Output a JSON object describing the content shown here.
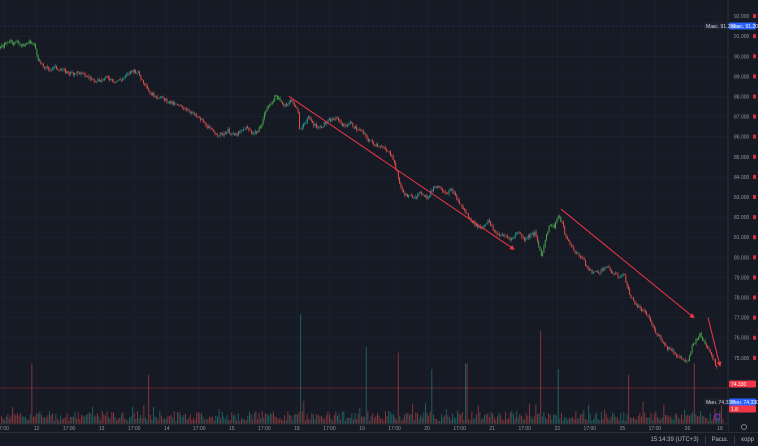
{
  "chart_data": {
    "type": "candlestick",
    "y_range": [
      73.5,
      92.5
    ],
    "y_ticks": [
      "92.000",
      "91.000",
      "90.000",
      "89.000",
      "88.000",
      "87.000",
      "86.000",
      "85.000",
      "84.000",
      "83.000",
      "82.000",
      "81.000",
      "80.000",
      "79.000",
      "78.000",
      "77.000",
      "76.000",
      "75.000"
    ],
    "x_tick_labels": [
      "7:00",
      "12",
      "17:00",
      "13",
      "17:00",
      "14",
      "17:00",
      "15",
      "17:00",
      "18",
      "17:00",
      "19",
      "17:00",
      "20",
      "17:00",
      "21",
      "17:00",
      "22",
      "17:00",
      "25",
      "17:00",
      "26",
      "18"
    ],
    "price_path": [
      [
        0,
        90.4
      ],
      [
        5,
        90.6
      ],
      [
        10,
        90.8
      ],
      [
        14,
        90.65
      ],
      [
        18,
        90.75
      ],
      [
        22,
        90.5
      ],
      [
        26,
        90.6
      ],
      [
        30,
        90.75
      ],
      [
        35,
        90.5
      ],
      [
        38,
        89.9
      ],
      [
        42,
        89.5
      ],
      [
        48,
        89.35
      ],
      [
        55,
        89.45
      ],
      [
        62,
        89.3
      ],
      [
        70,
        89.15
      ],
      [
        78,
        89.2
      ],
      [
        85,
        89.05
      ],
      [
        92,
        88.85
      ],
      [
        100,
        88.8
      ],
      [
        108,
        88.95
      ],
      [
        115,
        88.75
      ],
      [
        122,
        88.85
      ],
      [
        128,
        89.1
      ],
      [
        132,
        89.3
      ],
      [
        138,
        89.2
      ],
      [
        142,
        88.8
      ],
      [
        146,
        88.6
      ],
      [
        150,
        88.15
      ],
      [
        158,
        88.0
      ],
      [
        165,
        87.85
      ],
      [
        172,
        87.65
      ],
      [
        180,
        87.5
      ],
      [
        188,
        87.35
      ],
      [
        195,
        87.05
      ],
      [
        202,
        86.8
      ],
      [
        210,
        86.35
      ],
      [
        216,
        86.15
      ],
      [
        222,
        86.1
      ],
      [
        228,
        86.3
      ],
      [
        234,
        86.05
      ],
      [
        240,
        86.2
      ],
      [
        246,
        86.45
      ],
      [
        252,
        86.2
      ],
      [
        258,
        86.25
      ],
      [
        262,
        86.7
      ],
      [
        266,
        87.35
      ],
      [
        270,
        87.6
      ],
      [
        276,
        88.05
      ],
      [
        280,
        87.75
      ],
      [
        285,
        87.55
      ],
      [
        290,
        87.8
      ],
      [
        295,
        87.6
      ],
      [
        298,
        87.2
      ],
      [
        300,
        86.2
      ],
      [
        303,
        86.6
      ],
      [
        308,
        86.95
      ],
      [
        314,
        86.6
      ],
      [
        320,
        86.45
      ],
      [
        326,
        86.7
      ],
      [
        332,
        86.85
      ],
      [
        338,
        86.9
      ],
      [
        344,
        86.5
      ],
      [
        350,
        86.7
      ],
      [
        356,
        86.4
      ],
      [
        362,
        86.25
      ],
      [
        368,
        85.85
      ],
      [
        374,
        85.65
      ],
      [
        380,
        85.55
      ],
      [
        386,
        85.3
      ],
      [
        392,
        85.1
      ],
      [
        398,
        84.0
      ],
      [
        402,
        83.3
      ],
      [
        408,
        83.0
      ],
      [
        415,
        83.05
      ],
      [
        422,
        83.2
      ],
      [
        428,
        82.95
      ],
      [
        434,
        83.55
      ],
      [
        440,
        83.5
      ],
      [
        446,
        83.2
      ],
      [
        452,
        83.35
      ],
      [
        458,
        82.8
      ],
      [
        464,
        82.35
      ],
      [
        470,
        81.9
      ],
      [
        476,
        81.6
      ],
      [
        482,
        81.45
      ],
      [
        488,
        81.85
      ],
      [
        494,
        81.3
      ],
      [
        500,
        81.1
      ],
      [
        506,
        81.05
      ],
      [
        512,
        80.9
      ],
      [
        518,
        81.3
      ],
      [
        524,
        80.9
      ],
      [
        530,
        81.1
      ],
      [
        535,
        81.2
      ],
      [
        539,
        80.5
      ],
      [
        542,
        80.05
      ],
      [
        546,
        81.1
      ],
      [
        550,
        81.65
      ],
      [
        554,
        81.5
      ],
      [
        558,
        82.05
      ],
      [
        562,
        81.75
      ],
      [
        566,
        80.95
      ],
      [
        570,
        80.7
      ],
      [
        576,
        80.2
      ],
      [
        582,
        80.0
      ],
      [
        588,
        79.4
      ],
      [
        594,
        79.25
      ],
      [
        600,
        79.3
      ],
      [
        606,
        79.55
      ],
      [
        612,
        79.25
      ],
      [
        618,
        79.05
      ],
      [
        624,
        79.15
      ],
      [
        630,
        78.1
      ],
      [
        636,
        77.65
      ],
      [
        642,
        77.35
      ],
      [
        648,
        77.1
      ],
      [
        654,
        76.4
      ],
      [
        660,
        76.05
      ],
      [
        666,
        75.55
      ],
      [
        672,
        75.4
      ],
      [
        678,
        75.05
      ],
      [
        684,
        74.9
      ],
      [
        688,
        74.75
      ],
      [
        692,
        75.55
      ],
      [
        696,
        75.9
      ],
      [
        700,
        76.15
      ],
      [
        704,
        75.8
      ],
      [
        708,
        75.55
      ],
      [
        712,
        75.1
      ],
      [
        716,
        74.6
      ]
    ],
    "green_segments": [
      [
        0,
        40
      ],
      [
        258,
        282
      ],
      [
        538,
        562
      ],
      [
        686,
        706
      ]
    ],
    "trend_lines": [
      {
        "from": [
          289,
          88.0
        ],
        "to": [
          514,
          80.4
        ]
      },
      {
        "from": [
          561,
          82.4
        ],
        "to": [
          694,
          77.0
        ]
      },
      {
        "from": [
          708,
          77.0
        ],
        "to": [
          720,
          74.6
        ]
      }
    ],
    "price_tags": [
      {
        "label": "Макс.",
        "value": "91.200",
        "color": "#2962ff"
      },
      {
        "label": "",
        "value": "74.330",
        "color": "#f23645"
      },
      {
        "label": "Мин.",
        "value": "74.330",
        "color": "#2962ff"
      },
      {
        "label": "",
        "value": "1.8",
        "color": "#f23645"
      }
    ],
    "volume_spikes": [
      [
        32,
        0.55
      ],
      [
        148,
        0.45
      ],
      [
        300,
        1.0
      ],
      [
        366,
        0.7
      ],
      [
        398,
        0.65
      ],
      [
        432,
        0.5
      ],
      [
        466,
        0.55
      ],
      [
        540,
        0.85
      ],
      [
        558,
        0.5
      ],
      [
        628,
        0.45
      ],
      [
        694,
        0.55
      ]
    ]
  },
  "status": {
    "time": "15:14:39 (UTC+3)",
    "scale_label": "Расш.",
    "corr_label": "корр"
  },
  "colors": {
    "bg": "#161a25",
    "up": "#26a69a",
    "down": "#ef5350",
    "trend": "#f23645",
    "grid": "#1f2330"
  }
}
